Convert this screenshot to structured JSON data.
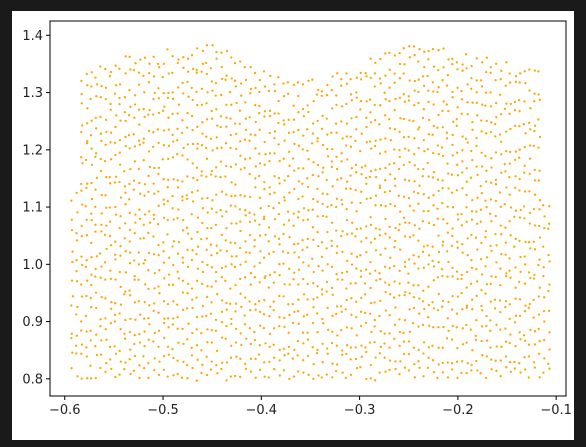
{
  "colors": {
    "window_background": "#1a1a1a",
    "figure_background": "#ffffff",
    "axes_edge": "#000000",
    "tick_label": "#222222"
  },
  "chart_data": {
    "type": "scatter",
    "title": "",
    "xlabel": "",
    "ylabel": "",
    "xlim": [
      -0.615,
      -0.09
    ],
    "ylim": [
      0.77,
      1.425
    ],
    "xticks": [
      -0.6,
      -0.5,
      -0.4,
      -0.3,
      -0.2,
      -0.1
    ],
    "xtick_labels": [
      "−0.6",
      "−0.5",
      "−0.4",
      "−0.3",
      "−0.2",
      "−0.1"
    ],
    "yticks": [
      0.8,
      0.9,
      1.0,
      1.1,
      1.2,
      1.3,
      1.4
    ],
    "ytick_labels": [
      "0.8",
      "0.9",
      "1.0",
      "1.1",
      "1.2",
      "1.3",
      "1.4"
    ],
    "grid": false,
    "legend": "none",
    "series": [
      {
        "color": "#ffa500",
        "marker": "circle",
        "point_cloud": {
          "x_range": [
            -0.595,
            -0.105
          ],
          "y_min": 0.795,
          "columns": 100,
          "points_per_column": 22,
          "upper_boundary": [
            [
              -0.595,
              1.115
            ],
            [
              -0.585,
              1.13
            ],
            [
              -0.583,
              1.34
            ],
            [
              -0.57,
              1.35
            ],
            [
              -0.55,
              1.36
            ],
            [
              -0.53,
              1.37
            ],
            [
              -0.5,
              1.375
            ],
            [
              -0.47,
              1.385
            ],
            [
              -0.455,
              1.395
            ],
            [
              -0.44,
              1.385
            ],
            [
              -0.42,
              1.36
            ],
            [
              -0.4,
              1.345
            ],
            [
              -0.38,
              1.33
            ],
            [
              -0.36,
              1.322
            ],
            [
              -0.34,
              1.325
            ],
            [
              -0.32,
              1.34
            ],
            [
              -0.3,
              1.352
            ],
            [
              -0.28,
              1.37
            ],
            [
              -0.26,
              1.385
            ],
            [
              -0.245,
              1.395
            ],
            [
              -0.225,
              1.39
            ],
            [
              -0.2,
              1.375
            ],
            [
              -0.17,
              1.365
            ],
            [
              -0.15,
              1.355
            ],
            [
              -0.13,
              1.345
            ],
            [
              -0.115,
              1.34
            ],
            [
              -0.113,
              1.125
            ],
            [
              -0.105,
              1.115
            ]
          ],
          "seed": 7
        }
      }
    ]
  }
}
